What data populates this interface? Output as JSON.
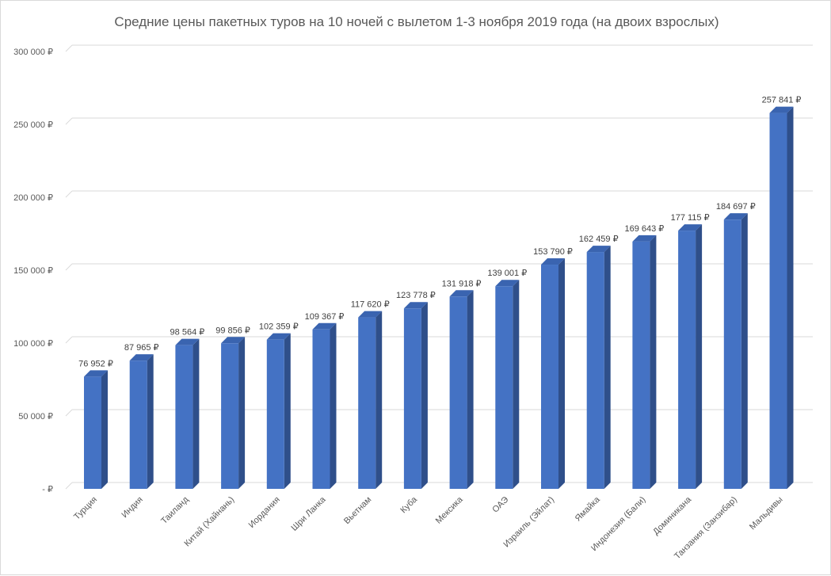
{
  "chart_data": {
    "type": "bar",
    "title": "Средние цены пакетных туров на 10 ночей с вылетом 1-3 ноября 2019 года (на двоих взрослых)",
    "xlabel": "",
    "ylabel": "",
    "ylim": [
      0,
      300000
    ],
    "yticks": [
      0,
      50000,
      100000,
      150000,
      200000,
      250000,
      300000
    ],
    "ytick_labels": [
      "-  ₽",
      "50 000 ₽",
      "100 000 ₽",
      "150 000 ₽",
      "200 000 ₽",
      "250 000 ₽",
      "300 000 ₽"
    ],
    "categories": [
      "Турция",
      "Индия",
      "Таиланд",
      "Китай (Хайнань)",
      "Иордания",
      "Шри Ланка",
      "Вьетнам",
      "Куба",
      "Мексика",
      "ОАЭ",
      "Израиль (Эйлат)",
      "Ямайка",
      "Индонезия (Бали)",
      "Доминикана",
      "Танзания (Занзибар)",
      "Мальдивы"
    ],
    "values": [
      76952,
      87965,
      98564,
      99856,
      102359,
      109367,
      117620,
      123778,
      131918,
      139001,
      153790,
      162459,
      169643,
      177115,
      184697,
      257841
    ],
    "data_labels": [
      "76 952 ₽",
      "87 965 ₽",
      "98 564 ₽",
      "99 856 ₽",
      "102 359 ₽",
      "109 367 ₽",
      "117 620 ₽",
      "123 778 ₽",
      "131 918 ₽",
      "139 001 ₽",
      "153 790 ₽",
      "162 459 ₽",
      "169 643 ₽",
      "177 115 ₽",
      "184 697 ₽",
      "257 841 ₽"
    ],
    "grid": true,
    "legend": "none",
    "colors": {
      "front": "#4472c4",
      "side": "#2f4f8a",
      "top": "#3a64b0"
    }
  }
}
